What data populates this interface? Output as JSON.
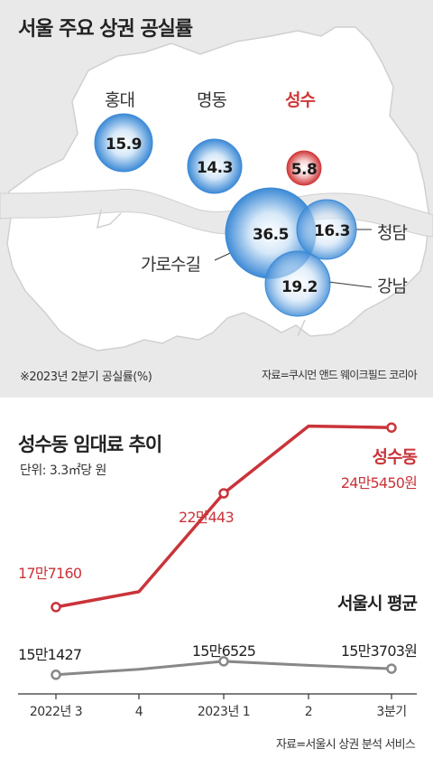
{
  "map_chart": {
    "title": "서울 주요 상권 공실률",
    "note": "※2023년 2분기 공실률(%)",
    "source": "자료=쿠시먼 앤드 웨이크필드 코리아",
    "colors": {
      "blue": "#3d8ad6",
      "red": "#d0383a",
      "land": "#ffffff",
      "background": "#e9e9e9"
    }
  },
  "line_chart": {
    "title": "성수동 임대료 추이",
    "unit": "단위: 3.3㎡당 원",
    "source": "자료=서울시 상권 분석 서비스",
    "colors": {
      "seongsu": "#c9343a",
      "seoul": "#888888"
    }
  },
  "chart_data": [
    {
      "type": "scatter",
      "title": "서울 주요 상권 공실률",
      "note": "※2023년 2분기 공실률(%)",
      "points": [
        {
          "name": "홍대",
          "value": 15.9,
          "highlight": false
        },
        {
          "name": "명동",
          "value": 14.3,
          "highlight": false
        },
        {
          "name": "성수",
          "value": 5.8,
          "highlight": true
        },
        {
          "name": "가로수길",
          "value": 36.5,
          "highlight": false
        },
        {
          "name": "청담",
          "value": 16.3,
          "highlight": false
        },
        {
          "name": "강남",
          "value": 19.2,
          "highlight": false
        }
      ]
    },
    {
      "type": "line",
      "title": "성수동 임대료 추이",
      "unit": "단위: 3.3㎡당 원",
      "categories": [
        "2022년 3",
        "4",
        "2023년 1",
        "2",
        "3분기"
      ],
      "ylim": [
        140000,
        250000
      ],
      "series": [
        {
          "name": "성수동",
          "values": [
            177160,
            183000,
            220443,
            246000,
            245450
          ],
          "labels": [
            "17만7160",
            "",
            "22만443",
            "",
            "24만5450원"
          ]
        },
        {
          "name": "서울시 평균",
          "values": [
            151427,
            153500,
            156525,
            155000,
            153703
          ],
          "labels": [
            "15만1427",
            "",
            "15만6525",
            "",
            "15만3703원"
          ]
        }
      ]
    }
  ]
}
